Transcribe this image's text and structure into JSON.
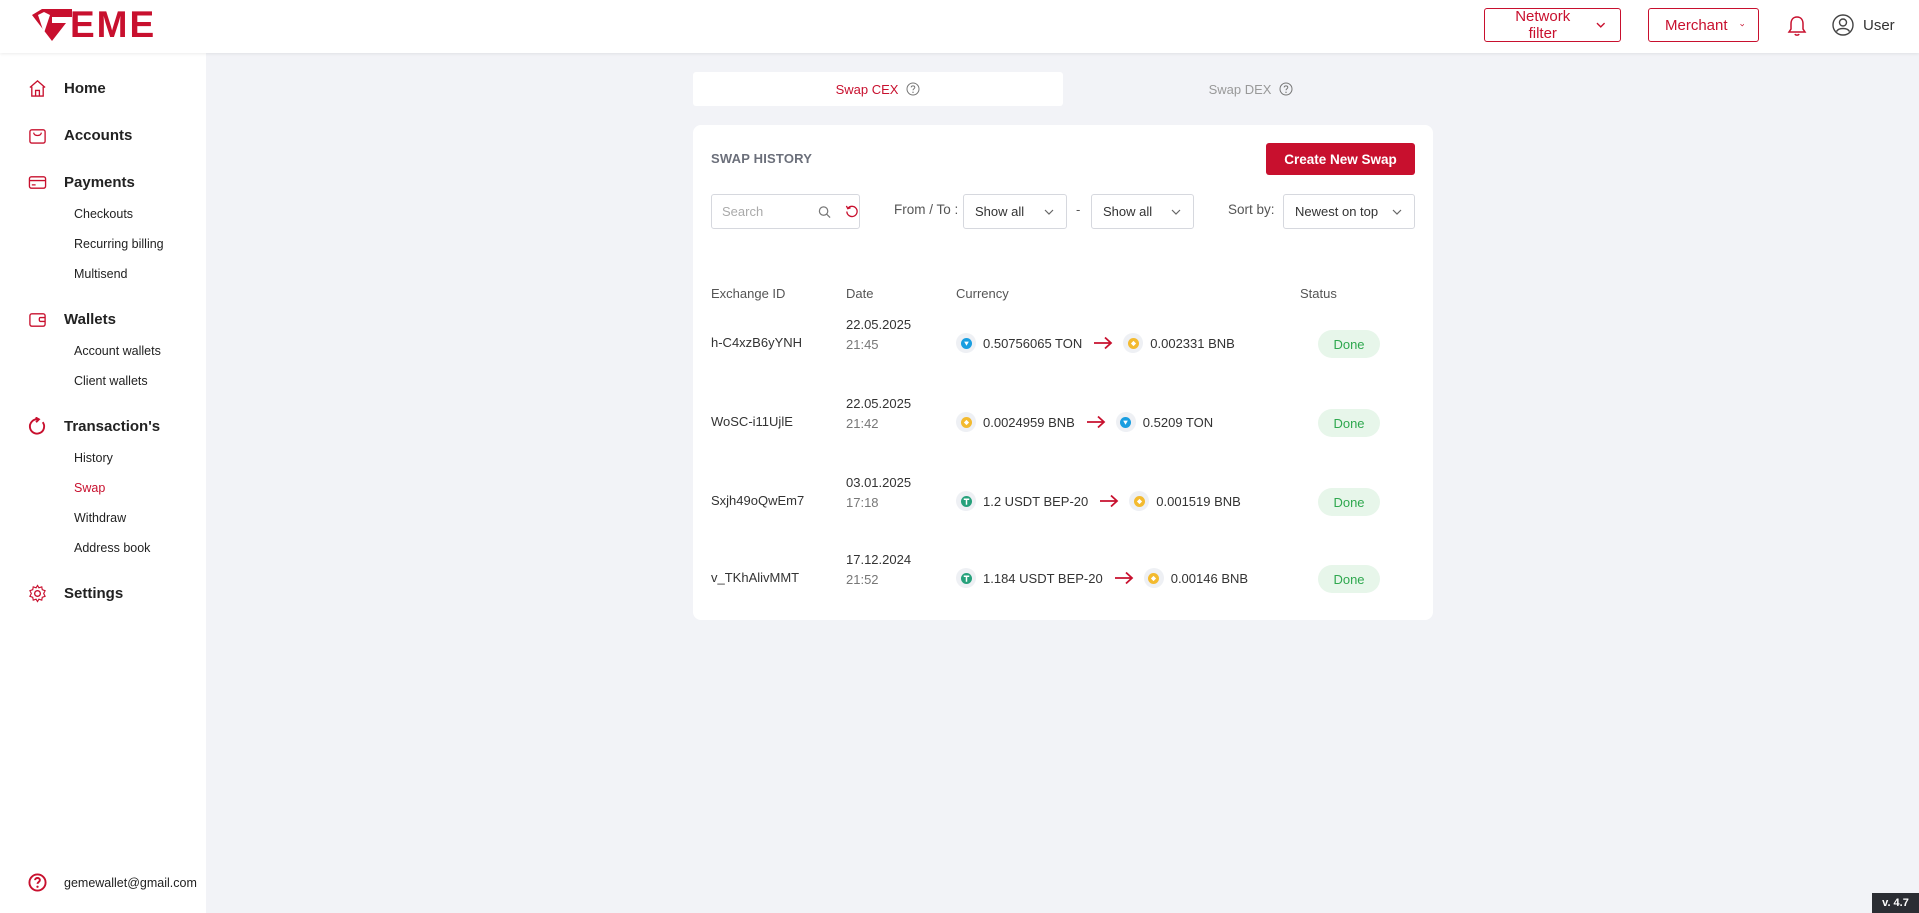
{
  "header": {
    "logo_text": "EME",
    "network_filter_label": "Network filter",
    "merchant_label": "Merchant",
    "user_label": "User"
  },
  "sidebar": {
    "home": "Home",
    "accounts": "Accounts",
    "payments": "Payments",
    "payments_items": [
      "Checkouts",
      "Recurring billing",
      "Multisend"
    ],
    "wallets": "Wallets",
    "wallets_items": [
      "Account wallets",
      "Client wallets"
    ],
    "transactions": "Transaction's",
    "transactions_items": [
      "History",
      "Swap",
      "Withdraw",
      "Address book"
    ],
    "active_item": "Swap",
    "settings": "Settings",
    "support_email": "gemewallet@gmail.com"
  },
  "tabs": {
    "cex": "Swap CEX",
    "dex": "Swap DEX"
  },
  "swap_history": {
    "title": "SWAP HISTORY",
    "create_button": "Create New Swap",
    "search_placeholder": "Search",
    "from_to_label": "From / To :",
    "from_select": "Show all",
    "dash": "-",
    "to_select": "Show all",
    "sort_label": "Sort by:",
    "sort_select": "Newest on top",
    "columns": {
      "id": "Exchange ID",
      "date": "Date",
      "currency": "Currency",
      "status": "Status"
    },
    "rows": [
      {
        "id": "h-C4xzB6yYNH",
        "date": "22.05.2025",
        "time": "21:45",
        "from_amount": "0.50756065 TON",
        "from_coin": "ton",
        "to_amount": "0.002331 BNB",
        "to_coin": "bnb",
        "status": "Done"
      },
      {
        "id": "WoSC-i11UjlE",
        "date": "22.05.2025",
        "time": "21:42",
        "from_amount": "0.0024959 BNB",
        "from_coin": "bnb",
        "to_amount": "0.5209 TON",
        "to_coin": "ton",
        "status": "Done"
      },
      {
        "id": "Sxjh49oQwEm7",
        "date": "03.01.2025",
        "time": "17:18",
        "from_amount": "1.2 USDT BEP-20",
        "from_coin": "usdt",
        "to_amount": "0.001519 BNB",
        "to_coin": "bnb",
        "status": "Done"
      },
      {
        "id": "v_TKhAlivMMT",
        "date": "17.12.2024",
        "time": "21:52",
        "from_amount": "1.184 USDT BEP-20",
        "from_coin": "usdt",
        "to_amount": "0.00146 BNB",
        "to_coin": "bnb",
        "status": "Done"
      }
    ]
  },
  "version": "v. 4.7",
  "colors": {
    "brand": "#c8102e",
    "done_text": "#2fa84f",
    "done_bg": "#e7f6ea",
    "ton": "#1a9ee0",
    "bnb": "#f3ba2f",
    "usdt": "#26a17b"
  },
  "icons": [
    "gem-logo-icon",
    "chevron-down-icon",
    "bell-icon",
    "user-icon",
    "home-icon",
    "bag-icon",
    "card-icon",
    "wallet-icon",
    "refresh-icon",
    "gear-icon",
    "help-icon",
    "question-icon",
    "search-icon",
    "reset-icon",
    "arrow-right-icon",
    "ton-coin-icon",
    "bnb-coin-icon",
    "usdt-coin-icon"
  ]
}
